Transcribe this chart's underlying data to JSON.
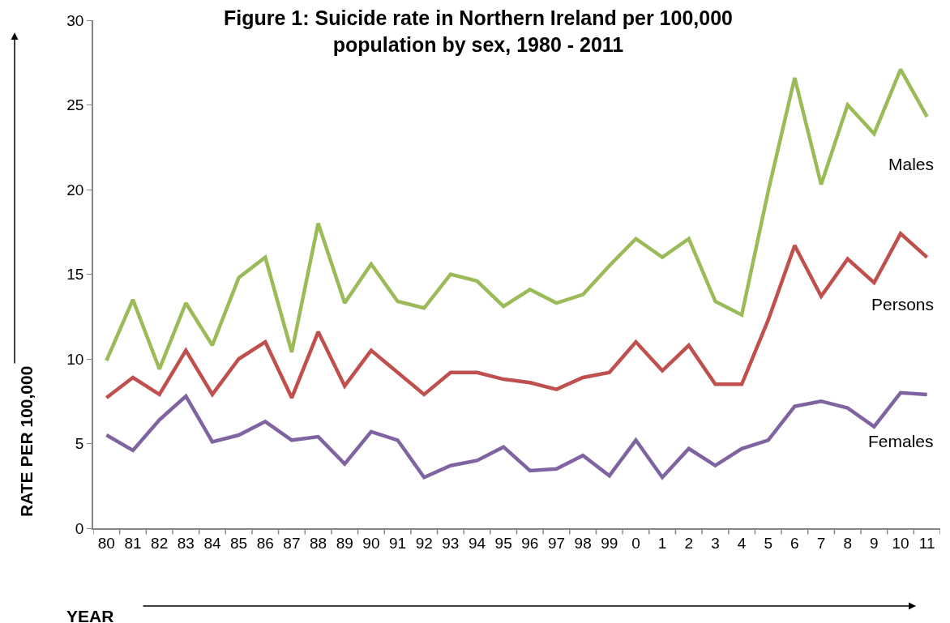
{
  "chart_data": {
    "type": "line",
    "title": "Figure 1: Suicide rate in Northern Ireland per 100,000 population by sex, 1980 - 2011",
    "xlabel": "YEAR",
    "ylabel": "RATE PER 100,000",
    "categories": [
      "80",
      "81",
      "82",
      "83",
      "84",
      "85",
      "86",
      "87",
      "88",
      "89",
      "90",
      "91",
      "92",
      "93",
      "94",
      "95",
      "96",
      "97",
      "98",
      "99",
      "0",
      "1",
      "2",
      "3",
      "4",
      "5",
      "6",
      "7",
      "8",
      "9",
      "10",
      "11"
    ],
    "series": [
      {
        "name": "Males",
        "color": "#9bbb59",
        "values": [
          9.9,
          13.5,
          9.4,
          13.3,
          10.8,
          14.8,
          16.0,
          10.4,
          18.0,
          13.3,
          15.6,
          13.4,
          13.0,
          15.0,
          14.6,
          13.1,
          14.1,
          13.3,
          13.8,
          15.5,
          17.1,
          16.0,
          17.1,
          13.4,
          12.6,
          19.9,
          26.6,
          20.3,
          25.0,
          23.3,
          27.1,
          24.3
        ]
      },
      {
        "name": "Persons",
        "color": "#c0504d",
        "values": [
          7.7,
          8.9,
          7.9,
          10.5,
          7.9,
          10.0,
          11.0,
          7.7,
          11.6,
          8.4,
          10.5,
          9.2,
          7.9,
          9.2,
          9.2,
          8.8,
          8.6,
          8.2,
          8.9,
          9.2,
          11.0,
          9.3,
          10.8,
          8.5,
          8.5,
          12.3,
          16.7,
          13.7,
          15.9,
          14.5,
          17.4,
          16.0
        ]
      },
      {
        "name": "Females",
        "color": "#8064a2",
        "values": [
          5.5,
          4.6,
          6.4,
          7.8,
          5.1,
          5.5,
          6.3,
          5.2,
          5.4,
          3.8,
          5.7,
          5.2,
          3.0,
          3.7,
          4.0,
          4.8,
          3.4,
          3.5,
          4.3,
          3.1,
          5.2,
          3.0,
          4.7,
          3.7,
          4.7,
          5.2,
          7.2,
          7.5,
          7.1,
          6.0,
          8.0,
          7.9
        ]
      }
    ],
    "ylim": [
      0,
      30
    ],
    "yticks": [
      0,
      5,
      10,
      15,
      20,
      25,
      30
    ],
    "marker": "none",
    "line_style": "solid"
  }
}
